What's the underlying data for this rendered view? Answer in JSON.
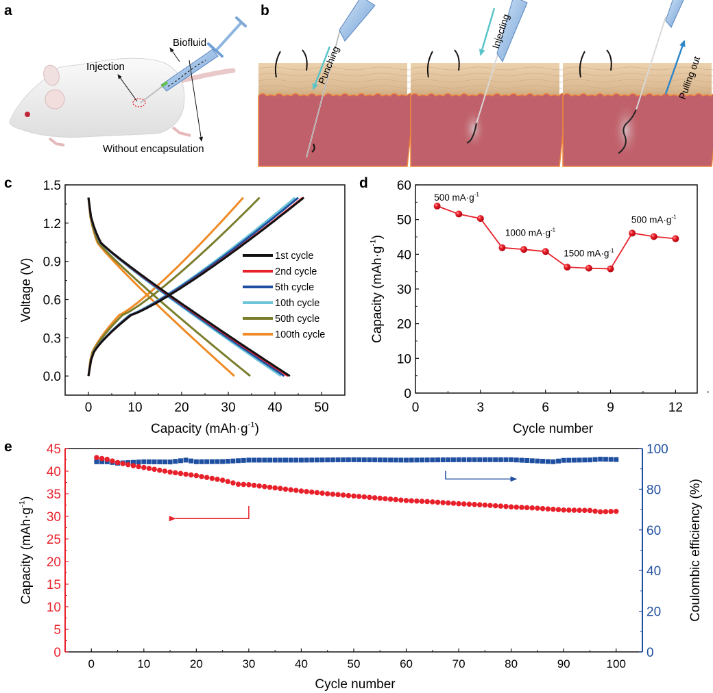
{
  "panels": {
    "a": {
      "letter": "a",
      "labels": {
        "biofluid": "Biofluid",
        "injection": "Injection",
        "without_encapsulation": "Without encapsulation"
      }
    },
    "b": {
      "letter": "b",
      "steps": [
        {
          "label": "Punching",
          "arrow_color": "#5bc4c9",
          "arrow_direction": "down"
        },
        {
          "label": "Injecting",
          "arrow_color": "#5bc4c9",
          "arrow_direction": "down"
        },
        {
          "label": "Pulling out",
          "arrow_color": "#2e86c8",
          "arrow_direction": "up"
        }
      ]
    },
    "c": {
      "letter": "c"
    },
    "d": {
      "letter": "d"
    },
    "e": {
      "letter": "e"
    }
  },
  "colors": {
    "skin_top": "#e8c9a4",
    "skin_bottom": "#c9a77f",
    "tissue": "#c0606a",
    "junction": "#f08a3c",
    "red_series": "#e8202a",
    "blue_series": "#1f4fa0"
  },
  "chart_data": [
    {
      "id": "c",
      "type": "line",
      "title": "",
      "xlabel": "Capacity (mAh·g",
      "xlabel_sup": "-1",
      "xlabel_end": ")",
      "ylabel": "Voltage (V)",
      "xlim": [
        -5,
        55
      ],
      "ylim": [
        -0.15,
        1.5
      ],
      "xticks": [
        0,
        10,
        20,
        30,
        40,
        50
      ],
      "yticks": [
        "0.0",
        "0.3",
        "0.6",
        "0.9",
        "1.2",
        "1.5"
      ],
      "legend_position": "right",
      "series": [
        {
          "name": "1st cycle",
          "color": "#111111",
          "discharge_end": 43.2,
          "charge_end": 46.2
        },
        {
          "name": "2nd cycle",
          "color": "#e8202a",
          "discharge_end": 42.8,
          "charge_end": 46.0
        },
        {
          "name": "5th cycle",
          "color": "#1f4fa0",
          "discharge_end": 42.0,
          "charge_end": 45.0
        },
        {
          "name": "10th cycle",
          "color": "#6cc5d8",
          "discharge_end": 41.3,
          "charge_end": 44.3
        },
        {
          "name": "50th cycle",
          "color": "#7a7d2c",
          "discharge_end": 34.7,
          "charge_end": 36.7
        },
        {
          "name": "100th cycle",
          "color": "#f08a24",
          "discharge_end": 31.3,
          "charge_end": 33.2
        }
      ],
      "voltage_range": [
        0.0,
        1.4
      ]
    },
    {
      "id": "d",
      "type": "line",
      "title": "",
      "xlabel": "Cycle number",
      "ylabel": "Capacity (mAh·g",
      "ylabel_sup": "-1",
      "ylabel_end": ")",
      "xlim": [
        0,
        13
      ],
      "ylim": [
        0,
        60
      ],
      "xticks": [
        0,
        3,
        6,
        9,
        12
      ],
      "yticks": [
        0,
        10,
        20,
        30,
        40,
        50,
        60
      ],
      "series": [
        {
          "name": "Capacity",
          "color": "#e8202a",
          "x": [
            1,
            2,
            3,
            4,
            5,
            6,
            7,
            8,
            9,
            10,
            11,
            12
          ],
          "y": [
            53.9,
            51.6,
            50.3,
            41.9,
            41.4,
            40.8,
            36.3,
            36.0,
            35.8,
            46.1,
            45.1,
            44.5
          ]
        }
      ],
      "annotations": [
        {
          "text": "500 mA·g",
          "sup": "-1",
          "x": 1.9,
          "y": 55.5
        },
        {
          "text": "1000 mA·g",
          "sup": "-1",
          "x": 5.3,
          "y": 45.3
        },
        {
          "text": "1500 mA·g",
          "sup": "-1",
          "x": 8.0,
          "y": 39.4
        },
        {
          "text": "500 mA·g",
          "sup": "-1",
          "x": 11.0,
          "y": 49.0
        }
      ]
    },
    {
      "id": "e",
      "type": "scatter",
      "title": "",
      "xlabel": "Cycle number",
      "ylabel_left": "Capacity (mAh·g",
      "ylabel_left_sup": "-1",
      "ylabel_left_end": ")",
      "ylabel_right": "Coulombic efficiency (%)",
      "xlim": [
        -5,
        105
      ],
      "ylim_left": [
        0,
        45
      ],
      "ylim_right": [
        0,
        100
      ],
      "xticks": [
        0,
        10,
        20,
        30,
        40,
        50,
        60,
        70,
        80,
        90,
        100
      ],
      "yticks_left": [
        0,
        5,
        10,
        15,
        20,
        25,
        30,
        35,
        40,
        45
      ],
      "yticks_right": [
        0,
        20,
        40,
        60,
        80,
        100
      ],
      "series": [
        {
          "name": "Capacity",
          "axis": "left",
          "color": "#e8202a",
          "marker": "circle",
          "x_start": 1,
          "x_end": 100,
          "keypoints": [
            [
              1,
              43.0
            ],
            [
              2,
              42.8
            ],
            [
              3,
              42.6
            ],
            [
              5,
              41.9
            ],
            [
              8,
              41.2
            ],
            [
              10,
              40.8
            ],
            [
              15,
              39.8
            ],
            [
              20,
              39.0
            ],
            [
              25,
              38.0
            ],
            [
              28,
              37.1
            ],
            [
              30,
              37.0
            ],
            [
              35,
              36.3
            ],
            [
              40,
              35.6
            ],
            [
              45,
              35.0
            ],
            [
              50,
              34.5
            ],
            [
              55,
              34.0
            ],
            [
              60,
              33.5
            ],
            [
              65,
              33.2
            ],
            [
              70,
              32.8
            ],
            [
              75,
              32.5
            ],
            [
              80,
              32.1
            ],
            [
              85,
              31.8
            ],
            [
              90,
              31.4
            ],
            [
              95,
              31.3
            ],
            [
              97,
              31.0
            ],
            [
              100,
              31.1
            ]
          ]
        },
        {
          "name": "Coulombic efficiency",
          "axis": "right",
          "color": "#1f4fa0",
          "marker": "square",
          "x_start": 1,
          "x_end": 100,
          "keypoints": [
            [
              1,
              93.5
            ],
            [
              3,
              93.5
            ],
            [
              5,
              92.8
            ],
            [
              8,
              93.2
            ],
            [
              10,
              93.5
            ],
            [
              15,
              93.4
            ],
            [
              18,
              94.3
            ],
            [
              20,
              93.5
            ],
            [
              25,
              93.6
            ],
            [
              30,
              94.3
            ],
            [
              40,
              94.3
            ],
            [
              50,
              94.5
            ],
            [
              60,
              94.3
            ],
            [
              70,
              94.5
            ],
            [
              80,
              94.5
            ],
            [
              88,
              93.5
            ],
            [
              90,
              94.2
            ],
            [
              95,
              94.4
            ],
            [
              97,
              94.8
            ],
            [
              100,
              94.6
            ]
          ]
        }
      ],
      "indicator_arrows": [
        {
          "series": "Capacity",
          "points_to": "left"
        },
        {
          "series": "Coulombic efficiency",
          "points_to": "right"
        }
      ]
    }
  ]
}
